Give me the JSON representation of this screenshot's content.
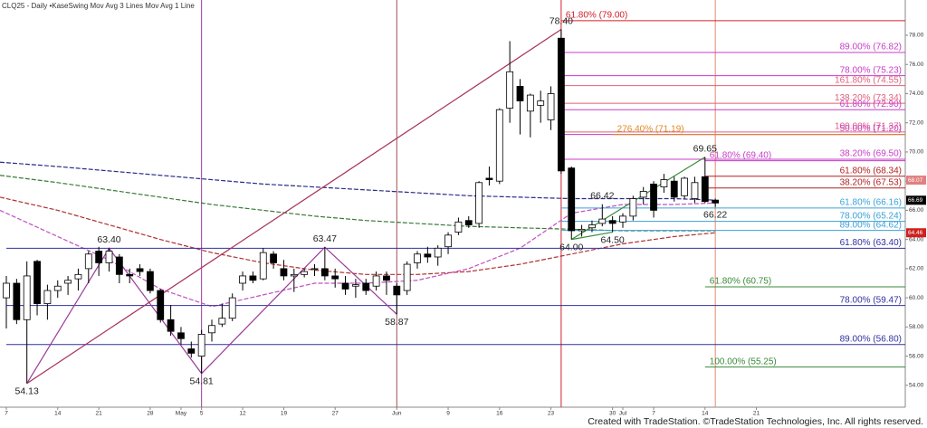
{
  "chart_data": {
    "type": "candlestick",
    "title": "CLQ25 - Daily  •KaseSwing  Mov Avg 3 Lines  Mov Avg 1 Line",
    "footer": "Created with TradeStation. ©TradeStation Technologies, Inc. All rights reserved.",
    "ylim": [
      52.5,
      80.42
    ],
    "yticks": [
      {
        "value": 54,
        "label": "54.00"
      },
      {
        "value": 56,
        "label": "56.00"
      },
      {
        "value": 58,
        "label": "58.00"
      },
      {
        "value": 60,
        "label": "60.00"
      },
      {
        "value": 62,
        "label": "62.00"
      },
      {
        "value": 64,
        "label": "64.00"
      },
      {
        "value": 66,
        "label": "66.00"
      },
      {
        "value": 68,
        "label": "68.00"
      },
      {
        "value": 70,
        "label": "70.00"
      },
      {
        "value": 72,
        "label": "72.00"
      },
      {
        "value": 74,
        "label": "74.00"
      },
      {
        "value": 76,
        "label": "76.00"
      },
      {
        "value": 78,
        "label": "78.00"
      }
    ],
    "xticks": [
      {
        "value": 0,
        "label": "7"
      },
      {
        "value": 5,
        "label": "14"
      },
      {
        "value": 9,
        "label": "21"
      },
      {
        "value": 14,
        "label": "28"
      },
      {
        "value": 17,
        "label": "May"
      },
      {
        "value": 19,
        "label": "5"
      },
      {
        "value": 23,
        "label": "12"
      },
      {
        "value": 27,
        "label": "19"
      },
      {
        "value": 32,
        "label": "27"
      },
      {
        "value": 38,
        "label": "Jun"
      },
      {
        "value": 43,
        "label": "9"
      },
      {
        "value": 48,
        "label": "16"
      },
      {
        "value": 53,
        "label": "23"
      },
      {
        "value": 59,
        "label": "30"
      },
      {
        "value": 60,
        "label": "Jul"
      },
      {
        "value": 63,
        "label": "7"
      },
      {
        "value": 68,
        "label": "14"
      },
      {
        "value": 73,
        "label": "21"
      }
    ],
    "candles": [
      [
        60.0,
        61.5,
        57.9,
        61.0
      ],
      [
        61.0,
        61.3,
        58.2,
        58.5
      ],
      [
        58.5,
        62.5,
        54.13,
        61.5
      ],
      [
        62.5,
        62.6,
        58.8,
        59.6
      ],
      [
        59.6,
        60.9,
        58.5,
        60.5
      ],
      [
        60.5,
        61.2,
        60.0,
        60.8
      ],
      [
        61.0,
        61.5,
        60.2,
        61.2
      ],
      [
        61.3,
        62.0,
        60.5,
        61.6
      ],
      [
        62.0,
        63.2,
        61.0,
        63.0
      ],
      [
        63.2,
        63.5,
        61.5,
        62.4
      ],
      [
        62.4,
        63.4,
        61.8,
        63.2
      ],
      [
        62.8,
        63.0,
        61.0,
        61.6
      ],
      [
        61.6,
        62.0,
        61.0,
        61.5
      ],
      [
        62.0,
        62.3,
        61.5,
        61.8
      ],
      [
        61.8,
        62.0,
        60.3,
        60.5
      ],
      [
        60.5,
        60.6,
        58.3,
        58.5
      ],
      [
        58.5,
        59.5,
        57.4,
        57.7
      ],
      [
        57.6,
        58.0,
        56.8,
        57.2
      ],
      [
        56.5,
        57.0,
        55.9,
        56.2
      ],
      [
        56.0,
        57.8,
        54.81,
        57.5
      ],
      [
        57.6,
        58.5,
        57.0,
        58.1
      ],
      [
        58.2,
        59.6,
        58.0,
        58.6
      ],
      [
        58.6,
        60.3,
        58.4,
        60.0
      ],
      [
        61.0,
        61.8,
        60.5,
        61.5
      ],
      [
        61.5,
        61.8,
        61.0,
        61.2
      ],
      [
        61.3,
        63.4,
        61.2,
        63.1
      ],
      [
        63.0,
        63.2,
        62.0,
        62.4
      ],
      [
        62.0,
        62.6,
        61.2,
        61.5
      ],
      [
        61.5,
        62.0,
        60.4,
        61.6
      ],
      [
        61.6,
        62.0,
        61.4,
        61.8
      ],
      [
        62.0,
        62.3,
        61.5,
        62.0
      ],
      [
        62.0,
        63.47,
        61.2,
        61.5
      ],
      [
        61.5,
        62.0,
        60.7,
        61.3
      ],
      [
        61.0,
        61.5,
        60.2,
        60.6
      ],
      [
        60.8,
        61.3,
        60.0,
        60.9
      ],
      [
        61.0,
        61.3,
        60.2,
        60.5
      ],
      [
        60.8,
        61.8,
        60.5,
        61.5
      ],
      [
        61.5,
        61.8,
        60.2,
        61.2
      ],
      [
        60.8,
        61.0,
        58.87,
        60.2
      ],
      [
        60.5,
        62.5,
        60.2,
        62.3
      ],
      [
        62.4,
        63.2,
        62.0,
        63.0
      ],
      [
        63.0,
        63.5,
        62.4,
        62.8
      ],
      [
        62.8,
        63.6,
        62.2,
        63.4
      ],
      [
        63.5,
        64.5,
        63.0,
        64.3
      ],
      [
        64.5,
        65.5,
        64.3,
        65.2
      ],
      [
        65.3,
        65.6,
        64.8,
        65.0
      ],
      [
        65.1,
        68.0,
        64.8,
        67.9
      ],
      [
        68.2,
        69.0,
        67.7,
        68.1
      ],
      [
        68.0,
        73.0,
        67.8,
        72.9
      ],
      [
        73.0,
        77.6,
        72.0,
        75.5
      ],
      [
        74.5,
        75.0,
        71.2,
        73.5
      ],
      [
        72.8,
        74.0,
        71.0,
        73.9
      ],
      [
        73.2,
        74.2,
        72.0,
        73.5
      ],
      [
        72.2,
        74.5,
        71.5,
        74.0
      ],
      [
        77.8,
        78.4,
        68.5,
        68.7
      ],
      [
        68.9,
        69.0,
        64.0,
        64.6
      ],
      [
        64.6,
        65.0,
        64.2,
        64.7
      ],
      [
        64.8,
        65.3,
        64.5,
        65.0
      ],
      [
        65.1,
        66.42,
        64.9,
        65.4
      ],
      [
        65.3,
        65.6,
        64.5,
        65.1
      ],
      [
        65.2,
        65.8,
        64.8,
        65.6
      ],
      [
        65.6,
        67.0,
        65.3,
        66.8
      ],
      [
        66.9,
        67.6,
        66.4,
        67.3
      ],
      [
        67.8,
        68.0,
        65.5,
        66.0
      ],
      [
        67.6,
        68.5,
        67.2,
        68.1
      ],
      [
        68.0,
        68.3,
        66.6,
        66.9
      ],
      [
        67.0,
        68.3,
        66.8,
        68.2
      ],
      [
        66.8,
        68.3,
        66.5,
        67.9
      ],
      [
        68.3,
        69.65,
        66.5,
        66.6
      ],
      [
        66.7,
        66.8,
        66.22,
        66.5
      ]
    ],
    "up_color": "#ffffff",
    "down_color": "#000000",
    "moving_averages": {
      "x": [
        0,
        5,
        10,
        15,
        20,
        25,
        30,
        35,
        40,
        45,
        50,
        55,
        60,
        65,
        69
      ],
      "series": [
        {
          "color": "#2b2b86",
          "values": [
            69.3,
            69.0,
            68.7,
            68.4,
            68.1,
            67.8,
            67.6,
            67.4,
            67.2,
            67.0,
            66.9,
            66.8,
            66.8,
            66.8,
            66.7
          ]
        },
        {
          "color": "#3a7a3a",
          "values": [
            68.4,
            67.9,
            67.4,
            66.9,
            66.4,
            66.0,
            65.6,
            65.3,
            65.1,
            64.9,
            64.8,
            64.7,
            64.6,
            64.6,
            64.6
          ]
        },
        {
          "color": "#b03030",
          "values": [
            66.9,
            66.0,
            65.0,
            64.0,
            63.1,
            62.4,
            61.9,
            61.6,
            61.6,
            61.8,
            62.3,
            63.0,
            63.7,
            64.2,
            64.46
          ]
        },
        {
          "color": "#c050c0",
          "values": [
            66.0,
            64.2,
            62.6,
            60.6,
            59.4,
            60.2,
            61.0,
            61.0,
            61.2,
            62.0,
            63.4,
            65.8,
            66.4,
            66.4,
            66.5
          ]
        }
      ]
    },
    "levels": [
      {
        "label": "61.80% (79.00)",
        "value": 79.0,
        "color": "#d0202a",
        "start": 54,
        "align": "left"
      },
      {
        "label": "89.00% (76.82)",
        "value": 76.82,
        "color": "#c83cc8",
        "start": 54,
        "align": "right"
      },
      {
        "label": "78.00% (75.23)",
        "value": 75.23,
        "color": "#c83cc8",
        "start": 54,
        "align": "right"
      },
      {
        "label": "161.80% (74.55)",
        "value": 74.55,
        "color": "#e0607a",
        "start": 54,
        "align": "right"
      },
      {
        "label": "138.20% (73.34)",
        "value": 73.34,
        "color": "#e0607a",
        "start": 54,
        "align": "right"
      },
      {
        "label": "61.80% (72.90)",
        "value": 72.9,
        "color": "#c83cc8",
        "start": 54,
        "align": "right"
      },
      {
        "label": "100.00% (71.37)",
        "value": 71.37,
        "color": "#e0607a",
        "start": 54,
        "align": "right"
      },
      {
        "label": "50.00% (71.20)",
        "value": 71.2,
        "color": "#c83cc8",
        "start": 54,
        "align": "right"
      },
      {
        "label": "276.40% (71.19)",
        "value": 71.19,
        "color": "#e08a20",
        "start": 59,
        "align": "left"
      },
      {
        "label": "38.20% (69.50)",
        "value": 69.5,
        "color": "#c83cc8",
        "start": 54,
        "align": "right"
      },
      {
        "label": "61.80% (69.40)",
        "value": 69.4,
        "color": "#c83cc8",
        "start": 68,
        "align": "left"
      },
      {
        "label": "61.80% (68.34)",
        "value": 68.34,
        "color": "#b02020",
        "start": 68,
        "align": "right"
      },
      {
        "label": "38.20% (67.53)",
        "value": 67.53,
        "color": "#b02020",
        "start": 68,
        "align": "right"
      },
      {
        "label": "61.80% (66.16)",
        "value": 66.16,
        "color": "#3aa0d8",
        "start": 54,
        "align": "right"
      },
      {
        "label": "78.00% (65.24)",
        "value": 65.24,
        "color": "#3aa0d8",
        "start": 54,
        "align": "right"
      },
      {
        "label": "89.00% (64.62)",
        "value": 64.62,
        "color": "#3aa0d8",
        "start": 54,
        "align": "right"
      },
      {
        "label": "61.80% (63.40)",
        "value": 63.4,
        "color": "#3030a0",
        "start": 0,
        "align": "right"
      },
      {
        "label": "61.80% (60.75)",
        "value": 60.75,
        "color": "#3a8a3a",
        "start": 68,
        "align": "left"
      },
      {
        "label": "78.00% (59.47)",
        "value": 59.47,
        "color": "#3030a0",
        "start": 0,
        "align": "right"
      },
      {
        "label": "89.00% (56.80)",
        "value": 56.8,
        "color": "#3030a0",
        "start": 0,
        "align": "right"
      },
      {
        "label": "100.00% (55.25)",
        "value": 55.25,
        "color": "#3a8a3a",
        "start": 68,
        "align": "left"
      }
    ],
    "pivots": [
      {
        "index": 2,
        "value": 54.13,
        "side": "below"
      },
      {
        "index": 10,
        "value": 63.4,
        "label": "63.40",
        "side": "above"
      },
      {
        "index": 19,
        "value": 54.81,
        "side": "below"
      },
      {
        "index": 31,
        "value": 63.47,
        "side": "above"
      },
      {
        "index": 38,
        "value": 58.87,
        "side": "below"
      },
      {
        "index": 54,
        "value": 78.4,
        "label": "78.40",
        "side": "above"
      },
      {
        "index": 58,
        "value": 66.42,
        "side": "above"
      },
      {
        "index": 55,
        "value": 64,
        "label": "64.00",
        "side": "below"
      },
      {
        "index": 59,
        "value": 64.5,
        "label": "64.50",
        "side": "below"
      },
      {
        "index": 68,
        "value": 69.65,
        "side": "above"
      },
      {
        "index": 69,
        "value": 66.22,
        "side": "below"
      }
    ],
    "trendlines": [
      {
        "pivots": [
          0,
          1,
          2,
          3,
          4
        ],
        "color": "#9a3a9a"
      },
      {
        "pivots": [
          0,
          5
        ],
        "color": "#a8305a"
      },
      {
        "pivots": [
          7,
          9
        ],
        "color": "#3a8a3a"
      },
      {
        "pivots": [
          7,
          8
        ],
        "color": "#3a8a3a"
      }
    ],
    "vlines": [
      {
        "index": 19,
        "color": "#9a3a9a"
      },
      {
        "index": 38,
        "color": "#a05050"
      },
      {
        "index": 54,
        "color": "#d0202a"
      },
      {
        "index": 69,
        "color": "#e08a6a"
      }
    ],
    "price_tags": {
      "values": [
        68.07,
        66.69,
        64.46
      ],
      "colors": [
        "#e08080",
        "#000000",
        "#d02020"
      ]
    }
  }
}
